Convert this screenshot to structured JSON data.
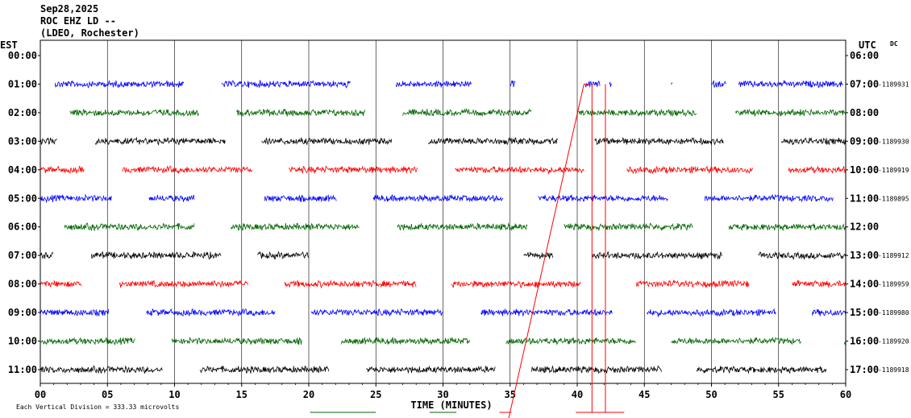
{
  "header": {
    "line1": "Sep28,2025",
    "line2": "ROC EHZ LD --",
    "line3": "(LDEO, Rochester)"
  },
  "chart_data": {
    "type": "seismogram-helicorder",
    "left_axis_title": "EST",
    "right_axis_title": "UTC",
    "right_axis_note": "DC",
    "x_axis_label": "TIME (MINUTES)",
    "x_ticks": [
      "00",
      "05",
      "10",
      "15",
      "20",
      "25",
      "30",
      "35",
      "40",
      "45",
      "50",
      "55",
      "60"
    ],
    "xlim": [
      0,
      60
    ],
    "scale_note": "Each Vertical Division = 333.33 microvolts",
    "trace_colors": [
      "#ff0000",
      "#0000ff",
      "#006400",
      "#000000"
    ],
    "rows": [
      {
        "est": "00:00",
        "utc": "06:00",
        "dc": "",
        "segments": []
      },
      {
        "est": "01:00",
        "utc": "07:00",
        "dc": "-1189931",
        "segments": [
          [
            1.1,
            10.7
          ],
          [
            13.5,
            23.1
          ],
          [
            26.5,
            32.1
          ],
          [
            35.0,
            35.4
          ],
          [
            40.6,
            41.7
          ],
          [
            42.4,
            42.6
          ],
          [
            47.0,
            47.1
          ],
          [
            50.0,
            51.1
          ],
          [
            52.0,
            59.8
          ]
        ]
      },
      {
        "est": "02:00",
        "utc": "08:00",
        "dc": "",
        "segments": [
          [
            2.2,
            11.8
          ],
          [
            14.6,
            24.2
          ],
          [
            27.0,
            36.6
          ],
          [
            40.0,
            48.9
          ],
          [
            51.8,
            60.0
          ]
        ]
      },
      {
        "est": "03:00",
        "utc": "09:00",
        "dc": "-1189930",
        "segments": [
          [
            0.0,
            1.3
          ],
          [
            4.1,
            13.8
          ],
          [
            16.5,
            26.2
          ],
          [
            28.9,
            38.6
          ],
          [
            41.3,
            50.9
          ],
          [
            55.2,
            60.0
          ]
        ]
      },
      {
        "est": "04:00",
        "utc": "10:00",
        "dc": "-1189919",
        "segments": [
          [
            0.0,
            3.3
          ],
          [
            6.1,
            15.8
          ],
          [
            18.5,
            28.1
          ],
          [
            30.9,
            40.5
          ],
          [
            43.7,
            53.1
          ],
          [
            55.7,
            60.0
          ]
        ]
      },
      {
        "est": "05:00",
        "utc": "11:00",
        "dc": "-1189895",
        "segments": [
          [
            0.0,
            5.3
          ],
          [
            8.1,
            11.5
          ],
          [
            16.7,
            22.1
          ],
          [
            24.8,
            34.5
          ],
          [
            37.1,
            46.8
          ],
          [
            49.5,
            59.1
          ]
        ]
      },
      {
        "est": "06:00",
        "utc": "12:00",
        "dc": "",
        "segments": [
          [
            1.8,
            11.5
          ],
          [
            14.2,
            23.8
          ],
          [
            26.6,
            36.3
          ],
          [
            39.0,
            48.6
          ],
          [
            51.3,
            60.0
          ]
        ]
      },
      {
        "est": "07:00",
        "utc": "13:00",
        "dc": "-1189912",
        "segments": [
          [
            0.0,
            1.0
          ],
          [
            3.8,
            13.5
          ],
          [
            16.2,
            20.0
          ],
          [
            36.0,
            38.2
          ],
          [
            41.1,
            50.8
          ],
          [
            53.5,
            60.0
          ]
        ]
      },
      {
        "est": "08:00",
        "utc": "14:00",
        "dc": "-1189959",
        "segments": [
          [
            0.0,
            3.1
          ],
          [
            5.9,
            15.5
          ],
          [
            18.2,
            28.0
          ],
          [
            30.6,
            40.3
          ],
          [
            44.4,
            52.8
          ],
          [
            56.0,
            60.0
          ]
        ]
      },
      {
        "est": "09:00",
        "utc": "15:00",
        "dc": "-1189980",
        "segments": [
          [
            0.0,
            5.1
          ],
          [
            7.9,
            17.5
          ],
          [
            20.2,
            30.0
          ],
          [
            32.8,
            42.6
          ],
          [
            45.2,
            54.8
          ],
          [
            57.5,
            60.0
          ]
        ]
      },
      {
        "est": "10:00",
        "utc": "16:00",
        "dc": "-1189920",
        "segments": [
          [
            0.0,
            7.1
          ],
          [
            9.8,
            19.5
          ],
          [
            22.4,
            32.0
          ],
          [
            34.7,
            44.4
          ],
          [
            47.0,
            56.7
          ],
          [
            59.9,
            60.0
          ]
        ]
      },
      {
        "est": "11:00",
        "utc": "17:00",
        "dc": "-1189918",
        "segments": [
          [
            0.0,
            9.1
          ],
          [
            11.9,
            21.5
          ],
          [
            24.3,
            33.9
          ],
          [
            36.6,
            46.3
          ],
          [
            48.9,
            58.6
          ]
        ]
      }
    ]
  }
}
